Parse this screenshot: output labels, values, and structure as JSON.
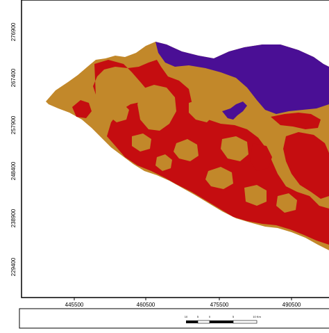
{
  "map": {
    "y_axis_labels": [
      "276900",
      "267400",
      "257900",
      "248400",
      "238900",
      "229400"
    ],
    "x_axis_labels": [
      "445500",
      "460500",
      "475500",
      "490500"
    ],
    "scale_bar": {
      "ticks": [
        "10",
        "5",
        "0",
        "5",
        "10 Km"
      ]
    },
    "colors": {
      "ochre": "#c2882a",
      "dark_red": "#c50d10",
      "purple": "#4a0f95",
      "frame": "#000000",
      "background": "#ffffff"
    },
    "classes": [
      "ochre",
      "dark-red",
      "purple"
    ]
  }
}
